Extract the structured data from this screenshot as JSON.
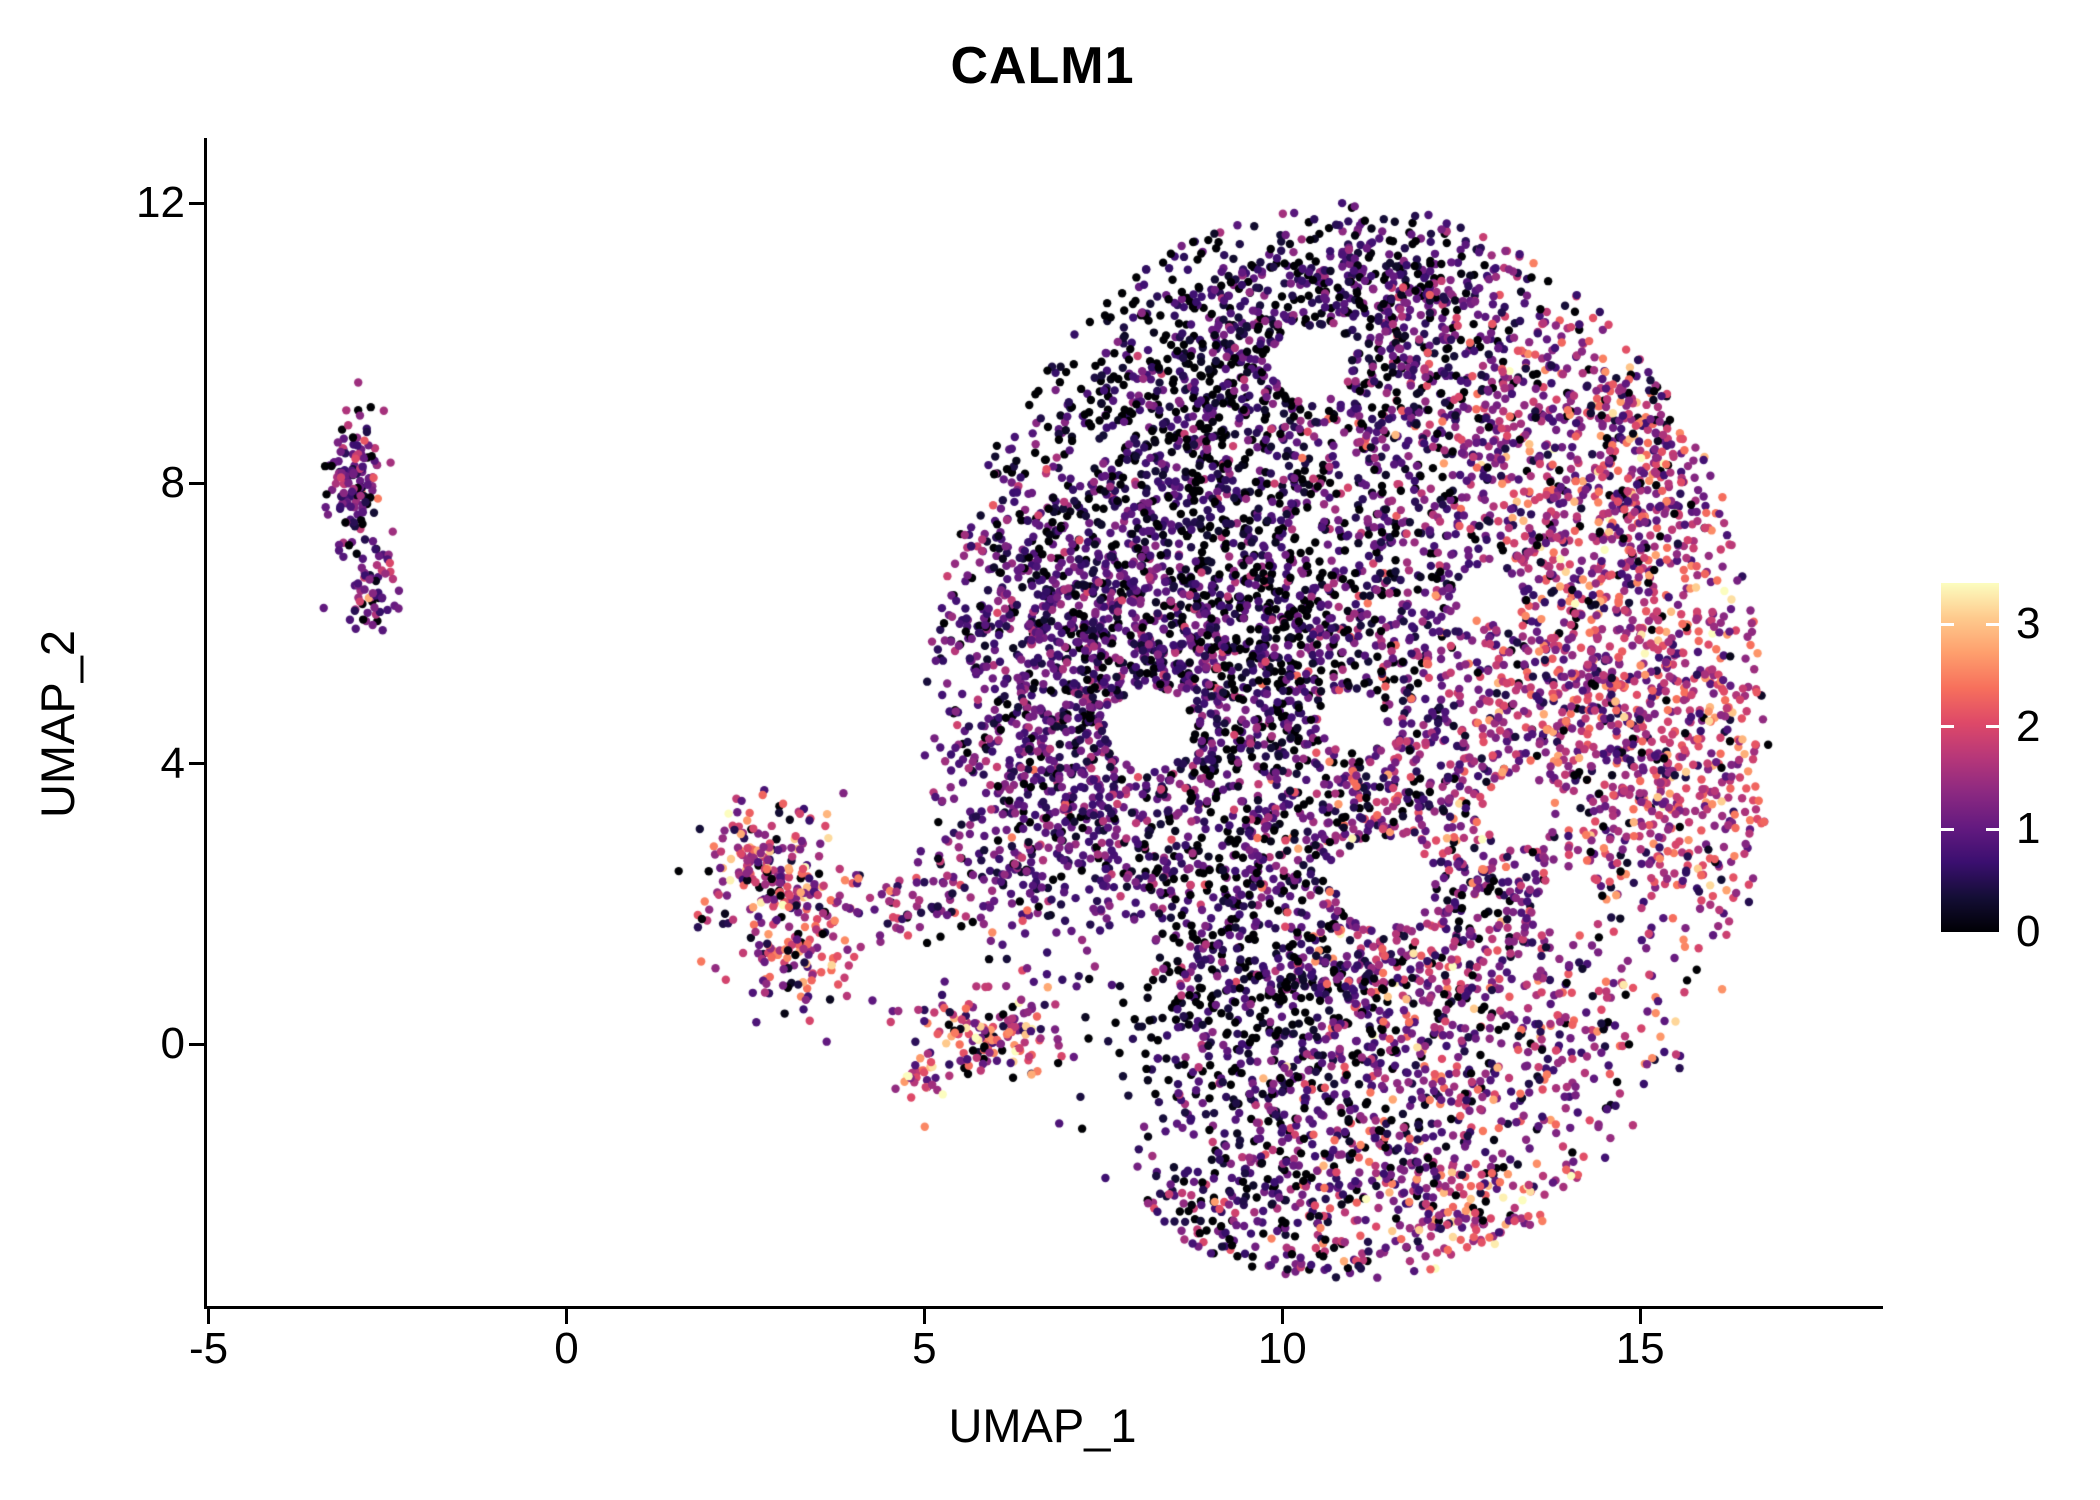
{
  "chart_data": {
    "type": "scatter",
    "title": "CALM1",
    "xlabel": "UMAP_1",
    "ylabel": "UMAP_2",
    "xlim": [
      -5.05,
      18.35
    ],
    "ylim": [
      -3.75,
      12.9
    ],
    "grid": false,
    "x_ticks": [
      {
        "value": -5,
        "label": "-5"
      },
      {
        "value": 0,
        "label": "0"
      },
      {
        "value": 5,
        "label": "5"
      },
      {
        "value": 10,
        "label": "10"
      },
      {
        "value": 15,
        "label": "15"
      }
    ],
    "y_ticks": [
      {
        "value": 0,
        "label": "0"
      },
      {
        "value": 4,
        "label": "4"
      },
      {
        "value": 8,
        "label": "8"
      },
      {
        "value": 12,
        "label": "12"
      }
    ],
    "legend": {
      "type": "colorbar",
      "position": "right",
      "domain": [
        0,
        3.4
      ],
      "ticks": [
        {
          "value": 0,
          "label": "0"
        },
        {
          "value": 1,
          "label": "1"
        },
        {
          "value": 2,
          "label": "2"
        },
        {
          "value": 3,
          "label": "3"
        }
      ],
      "colormap_name": "magma",
      "stops": [
        {
          "t": 0.0,
          "rgb": [
            0,
            0,
            4
          ]
        },
        {
          "t": 0.1,
          "rgb": [
            20,
            14,
            54
          ]
        },
        {
          "t": 0.2,
          "rgb": [
            59,
            15,
            112
          ]
        },
        {
          "t": 0.3,
          "rgb": [
            100,
            26,
            128
          ]
        },
        {
          "t": 0.4,
          "rgb": [
            140,
            41,
            129
          ]
        },
        {
          "t": 0.5,
          "rgb": [
            183,
            55,
            121
          ]
        },
        {
          "t": 0.6,
          "rgb": [
            222,
            73,
            104
          ]
        },
        {
          "t": 0.7,
          "rgb": [
            247,
            112,
            92
          ]
        },
        {
          "t": 0.8,
          "rgb": [
            254,
            159,
            109
          ]
        },
        {
          "t": 0.9,
          "rgb": [
            254,
            202,
            141
          ]
        },
        {
          "t": 1.0,
          "rgb": [
            252,
            253,
            191
          ]
        }
      ]
    },
    "point_radius_px": 4.2,
    "seed": 1337,
    "bound_ellipse": {
      "cx": 10.9,
      "cy": 4.3,
      "rx": 5.9,
      "ry": 7.7
    },
    "voids": [
      {
        "x": 10.4,
        "y": 9.7,
        "r": 0.55
      },
      {
        "x": 8.15,
        "y": 4.5,
        "r": 0.6
      },
      {
        "x": 11.4,
        "y": 2.3,
        "r": 0.65
      },
      {
        "x": 13.3,
        "y": 3.3,
        "r": 0.5
      },
      {
        "x": 14.0,
        "y": 2.0,
        "r": 0.45
      },
      {
        "x": 12.9,
        "y": 6.4,
        "r": 0.4
      },
      {
        "x": 7.8,
        "y": 1.3,
        "r": 0.45
      },
      {
        "x": 11.0,
        "y": 4.6,
        "r": 0.45
      }
    ],
    "clusters": [
      {
        "name": "left-isolate-upper",
        "n": 130,
        "cx": -2.95,
        "cy": 8.0,
        "sx": 0.18,
        "sy": 0.45,
        "mean": 1.0,
        "sd": 0.6,
        "zero": 0.05,
        "bounded": false
      },
      {
        "name": "left-isolate-lower",
        "n": 60,
        "cx": -2.72,
        "cy": 6.5,
        "sx": 0.16,
        "sy": 0.28,
        "mean": 0.9,
        "sd": 0.55,
        "zero": 0.05,
        "bounded": false
      },
      {
        "name": "mid-warm-a",
        "n": 170,
        "cx": 2.8,
        "cy": 2.55,
        "sx": 0.45,
        "sy": 0.5,
        "mean": 1.5,
        "sd": 0.9,
        "zero": 0.03,
        "bounded": false
      },
      {
        "name": "mid-warm-b",
        "n": 130,
        "cx": 3.2,
        "cy": 1.35,
        "sx": 0.5,
        "sy": 0.5,
        "mean": 1.5,
        "sd": 0.9,
        "zero": 0.03,
        "bounded": false
      },
      {
        "name": "mid-tail",
        "n": 90,
        "cx": 4.6,
        "cy": 2.05,
        "sx": 0.85,
        "sy": 0.3,
        "mean": 1.2,
        "sd": 0.8,
        "zero": 0.05,
        "bounded": false
      },
      {
        "name": "mid-blob-right",
        "n": 140,
        "cx": 5.9,
        "cy": 0.15,
        "sx": 0.5,
        "sy": 0.28,
        "mean": 1.6,
        "sd": 0.9,
        "zero": 0.03,
        "bounded": false
      },
      {
        "name": "mid-small",
        "n": 30,
        "cx": 4.95,
        "cy": -0.5,
        "sx": 0.16,
        "sy": 0.2,
        "mean": 1.9,
        "sd": 1.0,
        "zero": 0.0,
        "bounded": false
      },
      {
        "name": "main-top-dark",
        "n": 850,
        "cx": 8.6,
        "cy": 8.4,
        "sx": 1.35,
        "sy": 1.6,
        "mean": 0.5,
        "sd": 0.45,
        "zero": 0.3,
        "bounded": true
      },
      {
        "name": "main-top",
        "n": 420,
        "cx": 10.4,
        "cy": 10.2,
        "sx": 1.4,
        "sy": 0.95,
        "mean": 0.7,
        "sd": 0.5,
        "zero": 0.18,
        "bounded": true
      },
      {
        "name": "main-top-right",
        "n": 600,
        "cx": 12.4,
        "cy": 8.8,
        "sx": 1.6,
        "sy": 1.35,
        "mean": 1.0,
        "sd": 0.6,
        "zero": 0.08,
        "bounded": true
      },
      {
        "name": "main-topright-rim",
        "n": 240,
        "cx": 14.6,
        "cy": 8.4,
        "sx": 0.95,
        "sy": 0.95,
        "mean": 1.6,
        "sd": 0.8,
        "zero": 0.03,
        "bounded": true
      },
      {
        "name": "main-right",
        "n": 620,
        "cx": 14.5,
        "cy": 6.2,
        "sx": 1.3,
        "sy": 1.8,
        "mean": 1.6,
        "sd": 0.7,
        "zero": 0.03,
        "bounded": true
      },
      {
        "name": "main-right-edge",
        "n": 340,
        "cx": 15.7,
        "cy": 4.2,
        "sx": 0.8,
        "sy": 1.5,
        "mean": 1.8,
        "sd": 0.7,
        "zero": 0.02,
        "bounded": true
      },
      {
        "name": "main-left-dense",
        "n": 850,
        "cx": 7.35,
        "cy": 5.2,
        "sx": 1.3,
        "sy": 1.3,
        "mean": 0.9,
        "sd": 0.5,
        "zero": 0.07,
        "bounded": true
      },
      {
        "name": "main-center-dark",
        "n": 300,
        "cx": 9.8,
        "cy": 5.7,
        "sx": 0.95,
        "sy": 1.05,
        "mean": 0.5,
        "sd": 0.4,
        "zero": 0.33,
        "bounded": true
      },
      {
        "name": "main-center",
        "n": 650,
        "cx": 9.6,
        "cy": 3.1,
        "sx": 1.75,
        "sy": 1.6,
        "mean": 0.8,
        "sd": 0.55,
        "zero": 0.15,
        "bounded": true
      },
      {
        "name": "main-center-right",
        "n": 600,
        "cx": 12.2,
        "cy": 2.6,
        "sx": 1.7,
        "sy": 1.4,
        "mean": 1.3,
        "sd": 0.7,
        "zero": 0.05,
        "bounded": true
      },
      {
        "name": "main-mid-fill",
        "n": 350,
        "cx": 11.0,
        "cy": 6.1,
        "sx": 1.5,
        "sy": 1.3,
        "mean": 0.9,
        "sd": 0.6,
        "zero": 0.12,
        "bounded": true
      },
      {
        "name": "main-left-lower",
        "n": 260,
        "cx": 6.7,
        "cy": 3.1,
        "sx": 0.9,
        "sy": 1.0,
        "mean": 0.9,
        "sd": 0.5,
        "zero": 0.08,
        "bounded": true
      },
      {
        "name": "main-right-center",
        "n": 220,
        "cx": 13.6,
        "cy": 4.6,
        "sx": 1.2,
        "sy": 1.0,
        "mean": 1.4,
        "sd": 0.7,
        "zero": 0.05,
        "bounded": true
      },
      {
        "name": "main-bottom-dark",
        "n": 480,
        "cx": 9.8,
        "cy": 0.6,
        "sx": 1.15,
        "sy": 1.15,
        "mean": 0.5,
        "sd": 0.45,
        "zero": 0.3,
        "bounded": true
      },
      {
        "name": "main-bottom-right",
        "n": 340,
        "cx": 12.8,
        "cy": 0.5,
        "sx": 1.4,
        "sy": 0.95,
        "mean": 1.4,
        "sd": 0.8,
        "zero": 0.05,
        "bounded": true
      },
      {
        "name": "main-bottom-lobe",
        "n": 430,
        "cx": 11.2,
        "cy": -1.6,
        "sx": 1.7,
        "sy": 0.95,
        "mean": 1.1,
        "sd": 0.7,
        "zero": 0.1,
        "bounded": true
      },
      {
        "name": "main-bottom-tail",
        "n": 130,
        "cx": 9.2,
        "cy": -2.5,
        "sx": 1.1,
        "sy": 0.5,
        "mean": 0.8,
        "sd": 0.6,
        "zero": 0.2,
        "bounded": true
      },
      {
        "name": "main-bottom-warm-rim",
        "n": 150,
        "cx": 12.3,
        "cy": -2.3,
        "sx": 0.95,
        "sy": 0.5,
        "mean": 1.9,
        "sd": 0.8,
        "zero": 0.03,
        "bounded": true
      },
      {
        "name": "main-top-rim",
        "n": 170,
        "cx": 12.1,
        "cy": 10.9,
        "sx": 1.2,
        "sy": 0.6,
        "mean": 0.9,
        "sd": 0.6,
        "zero": 0.15,
        "bounded": true
      },
      {
        "name": "main-upperleft-rim",
        "n": 150,
        "cx": 6.4,
        "cy": 6.9,
        "sx": 0.7,
        "sy": 0.9,
        "mean": 0.9,
        "sd": 0.5,
        "zero": 0.08,
        "bounded": true
      }
    ]
  }
}
